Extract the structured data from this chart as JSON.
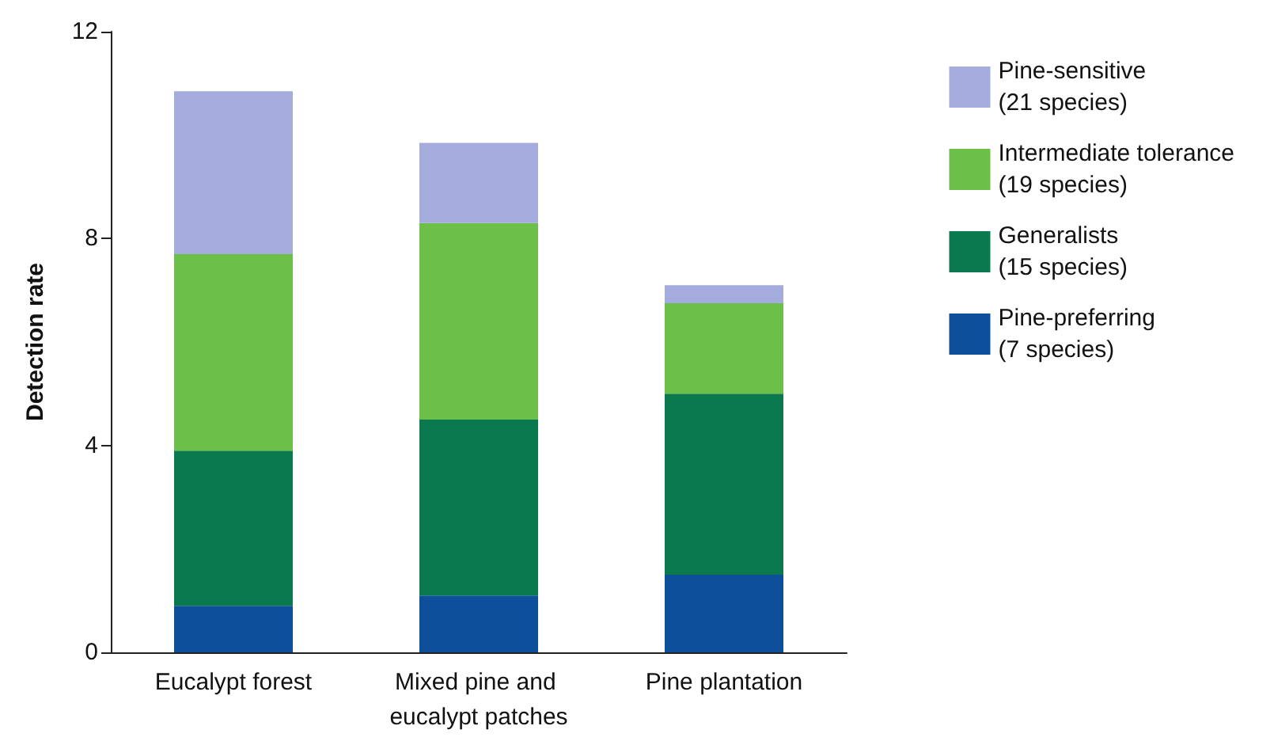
{
  "chart_data": {
    "type": "bar",
    "stacked": true,
    "ylabel": "Detection rate",
    "categories": [
      "Eucalypt forest",
      "Mixed pine and eucalypt patches",
      "Pine plantation"
    ],
    "series": [
      {
        "name": "Pine-preferring (7 species)",
        "color": "#0d4f9a",
        "values": [
          0.9,
          1.1,
          1.5
        ]
      },
      {
        "name": "Generalists (15 species)",
        "color": "#0a7a4e",
        "values": [
          3.0,
          3.4,
          3.5
        ]
      },
      {
        "name": "Intermediate tolerance (19 species)",
        "color": "#6cc04a",
        "values": [
          3.8,
          3.8,
          1.75
        ]
      },
      {
        "name": "Pine-sensitive (21 species)",
        "color": "#a3acdc",
        "values": [
          3.15,
          1.55,
          0.35
        ]
      }
    ],
    "ylim": [
      0,
      12
    ],
    "yticks": [
      0,
      4,
      8,
      12
    ],
    "grid": false,
    "legend": "right"
  }
}
